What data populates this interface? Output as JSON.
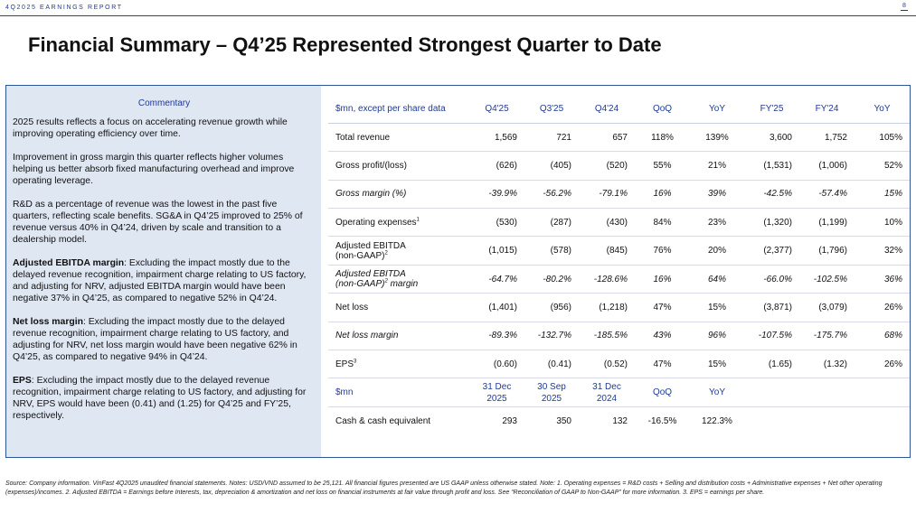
{
  "header": {
    "report_label": "4Q2025 EARNINGS REPORT",
    "page_number": "8"
  },
  "title": "Financial Summary – Q4’25 Represented Strongest Quarter to Date",
  "commentary": {
    "heading": "Commentary",
    "paragraphs": [
      {
        "bold": "",
        "text": "2025 results reflects a focus on accelerating revenue growth  while improving operating efficiency over time."
      },
      {
        "bold": "",
        "text": "Improvement in gross margin this quarter reflects higher volumes helping us better absorb fixed manufacturing overhead and improve operating leverage."
      },
      {
        "bold": "",
        "text": "R&D as a percentage of revenue was the lowest in the past five quarters, reflecting scale benefits. SG&A in Q4’25 improved to 25% of revenue versus 40% in Q4’24, driven by scale and transition to a dealership model."
      },
      {
        "bold": "Adjusted EBITDA margin",
        "text": ": Excluding the impact mostly due to the delayed revenue recognition, impairment charge relating to US factory, and adjusting for NRV, adjusted EBITDA margin would have been negative 37% in Q4’25, as compared to negative 52% in Q4’24."
      },
      {
        "bold": "Net loss margin",
        "text": ": Excluding the impact mostly due to the delayed revenue recognition, impairment charge relating to US factory, and adjusting for NRV, net loss margin would have been negative 62% in Q4’25, as compared to negative 94% in Q4’24."
      },
      {
        "bold": "EPS",
        "text": ": Excluding the impact mostly due to the delayed revenue recognition, impairment charge relating to US factory, and adjusting for NRV, EPS would have been (0.41) and (1.25) for Q4’25 and FY’25, respectively."
      }
    ]
  },
  "table": {
    "columns": [
      "$mn, except per share data",
      "Q4'25",
      "Q3'25",
      "Q4'24",
      "QoQ",
      "YoY",
      "FY'25",
      "FY'24",
      "YoY"
    ],
    "rows": [
      {
        "label": "Total revenue",
        "sup": "",
        "label2": "",
        "label2_tail": "",
        "italic": false,
        "values": [
          "1,569",
          "721",
          "657",
          "118%",
          "139%",
          "3,600",
          "1,752",
          "105%"
        ]
      },
      {
        "label": "Gross profit/(loss)",
        "sup": "",
        "label2": "",
        "label2_tail": "",
        "italic": false,
        "values": [
          "(626)",
          "(405)",
          "(520)",
          "55%",
          "21%",
          "(1,531)",
          "(1,006)",
          "52%"
        ]
      },
      {
        "label": "Gross margin (%)",
        "sup": "",
        "label2": "",
        "label2_tail": "",
        "italic": true,
        "values": [
          "-39.9%",
          "-56.2%",
          "-79.1%",
          "16%",
          "39%",
          "-42.5%",
          "-57.4%",
          "15%"
        ]
      },
      {
        "label": "Operating expenses",
        "sup": "1",
        "label2": "",
        "label2_tail": "",
        "italic": false,
        "values": [
          "(530)",
          "(287)",
          "(430)",
          "84%",
          "23%",
          "(1,320)",
          "(1,199)",
          "10%"
        ]
      },
      {
        "label": "Adjusted EBITDA",
        "sup": "2",
        "label2": "(non-GAAP)",
        "label2_tail": "",
        "italic": false,
        "values": [
          "(1,015)",
          "(578)",
          "(845)",
          "76%",
          "20%",
          "(2,377)",
          "(1,796)",
          "32%"
        ]
      },
      {
        "label": "Adjusted EBITDA",
        "sup": "2",
        "label2": "(non-GAAP)",
        "label2_tail": " margin",
        "italic": true,
        "values": [
          "-64.7%",
          "-80.2%",
          "-128.6%",
          "16%",
          "64%",
          "-66.0%",
          "-102.5%",
          "36%"
        ]
      },
      {
        "label": "Net loss",
        "sup": "",
        "label2": "",
        "label2_tail": "",
        "italic": false,
        "values": [
          "(1,401)",
          "(956)",
          "(1,218)",
          "47%",
          "15%",
          "(3,871)",
          "(3,079)",
          "26%"
        ]
      },
      {
        "label": "Net loss margin",
        "sup": "",
        "label2": "",
        "label2_tail": "",
        "italic": true,
        "values": [
          "-89.3%",
          "-132.7%",
          "-185.5%",
          "43%",
          "96%",
          "-107.5%",
          "-175.7%",
          "68%"
        ]
      },
      {
        "label": "EPS",
        "sup": "3",
        "label2": "",
        "label2_tail": "",
        "italic": false,
        "values": [
          "(0.60)",
          "(0.41)",
          "(0.52)",
          "47%",
          "15%",
          "(1.65)",
          "(1.32)",
          "26%"
        ]
      }
    ],
    "balance": {
      "label": "$mn",
      "col1": [
        "31 Dec",
        "2025"
      ],
      "col2": [
        "30 Sep",
        "2025"
      ],
      "col3": [
        "31 Dec",
        "2024"
      ],
      "qoq": "QoQ",
      "yoy": "YoY",
      "row": {
        "label": "Cash & cash equivalent",
        "values": [
          "293",
          "350",
          "132",
          "-16.5%",
          "122.3%"
        ]
      }
    }
  },
  "source_note": "Source: Company information. VinFast 4Q2025 unaudited financial statements. Notes: USD/VND assumed to be 25,121. All financial figures presented are US GAAP unless otherwise stated. Note: 1. Operating expenses = R&D costs + Selling and distribution costs + Administrative expenses + Net other operating (expenses)/incomes. 2. Adjusted EBITDA = Earnings before Interests, tax, depreciation & amortization and net loss on financial instruments at fair value through profit and loss. See “Reconciliation of GAAP to Non-GAAP” for more information. 3. EPS = earnings per share.",
  "colors": {
    "accent": "#1f3a93",
    "commentary_bg": "#dfe7f3",
    "frame": "#2f5597"
  }
}
